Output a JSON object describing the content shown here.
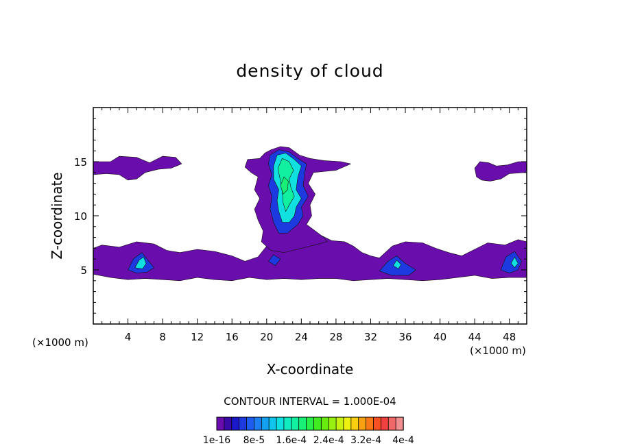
{
  "chart_data": {
    "type": "heatmap",
    "title": "density of cloud",
    "xlabel": "X-coordinate",
    "ylabel": "Z-coordinate",
    "x_unit_left": "(×1000 m)",
    "x_unit_right": "(×1000 m)",
    "xlim": [
      0,
      50
    ],
    "ylim": [
      0,
      20
    ],
    "x_ticks": [
      4,
      8,
      12,
      16,
      20,
      24,
      28,
      32,
      36,
      40,
      44,
      48
    ],
    "y_ticks": [
      5,
      10,
      15
    ],
    "contour_interval_label": "CONTOUR INTERVAL = 1.000E-04",
    "colorbar": {
      "labels": [
        "1e-16",
        "8e-5",
        "1.6e-4",
        "2.4e-4",
        "3.2e-4",
        "4e-4"
      ],
      "colors": [
        "#6a0dad",
        "#3a0aa8",
        "#1a18c8",
        "#1c3ae0",
        "#1e5cf0",
        "#1e7ef4",
        "#14a0f0",
        "#10c4ec",
        "#10e0e0",
        "#10ecc0",
        "#10f0a0",
        "#18f078",
        "#28f048",
        "#40ec20",
        "#68ec10",
        "#98f010",
        "#c8f010",
        "#eef010",
        "#f8d010",
        "#f8a010",
        "#f87818",
        "#f85020",
        "#f04040",
        "#f06868",
        "#f09090"
      ]
    },
    "cloud_regions": [
      {
        "name": "upper-left layer",
        "x": [
          0,
          10.5
        ],
        "z": [
          13.5,
          15.5
        ],
        "max_density": "1e-16"
      },
      {
        "name": "central convective column",
        "x": [
          18,
          30
        ],
        "z": [
          4.5,
          16.5
        ],
        "max_density": "1.6e-4"
      },
      {
        "name": "upper-right patch",
        "x": [
          44,
          50
        ],
        "z": [
          13.2,
          15.2
        ],
        "max_density": "1e-16"
      },
      {
        "name": "lower layer",
        "x": [
          0,
          50
        ],
        "z": [
          4,
          7.5
        ],
        "max_density": "8e-5"
      }
    ]
  }
}
